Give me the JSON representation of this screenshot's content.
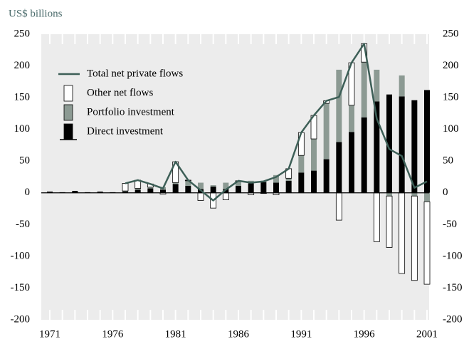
{
  "chart_data": {
    "type": "bar",
    "y_label": "US$ billions",
    "categories": [
      1971,
      null,
      null,
      null,
      null,
      1976,
      null,
      null,
      null,
      null,
      1981,
      null,
      null,
      null,
      null,
      1986,
      null,
      null,
      null,
      null,
      1991,
      null,
      null,
      null,
      null,
      1996,
      null,
      null,
      null,
      null,
      2001
    ],
    "series": [
      {
        "name": "Total net private flows",
        "type": "line",
        "color": "#3d5f57",
        "values": [
          null,
          null,
          null,
          null,
          null,
          null,
          15,
          20,
          14,
          7,
          49,
          20,
          4,
          -12,
          5,
          19,
          16,
          18,
          25,
          38,
          95,
          122,
          145,
          151,
          205,
          235,
          117,
          69,
          58,
          8,
          18
        ]
      },
      {
        "name": "Other net flows",
        "type": "bar",
        "color": "#ffffff",
        "values": [
          0,
          0,
          0,
          0,
          0,
          0,
          12,
          13,
          5,
          -2,
          33,
          1,
          -12,
          -24,
          -11,
          1,
          -3,
          -1,
          -3,
          15,
          36,
          37,
          4,
          -43,
          67,
          29,
          -77,
          -81,
          -127,
          -133,
          -130
        ]
      },
      {
        "name": "Portfolio investment",
        "type": "bar",
        "color": "#8c9a93",
        "values": [
          0,
          0,
          0,
          0,
          0,
          0,
          1,
          2,
          2,
          4,
          2,
          8,
          10,
          2,
          10,
          7,
          4,
          2,
          12,
          4,
          27,
          50,
          88,
          114,
          42,
          87,
          50,
          -5,
          33,
          -5,
          -14
        ]
      },
      {
        "name": "Direct investment",
        "type": "bar",
        "color": "#000000",
        "values": [
          2,
          1,
          3,
          1,
          2,
          1,
          2,
          5,
          7,
          5,
          14,
          11,
          6,
          10,
          6,
          11,
          15,
          17,
          16,
          19,
          32,
          35,
          53,
          80,
          96,
          119,
          144,
          155,
          152,
          146,
          162
        ]
      }
    ],
    "ylim": [
      -200,
      250
    ],
    "yticks": [
      -200,
      -150,
      -100,
      -50,
      0,
      50,
      100,
      150,
      200,
      250
    ],
    "y2lim": [
      -200,
      250
    ],
    "y2ticks": [
      -200,
      -150,
      -100,
      -50,
      0,
      50,
      100,
      150,
      200,
      250
    ],
    "legend": "upper left"
  }
}
